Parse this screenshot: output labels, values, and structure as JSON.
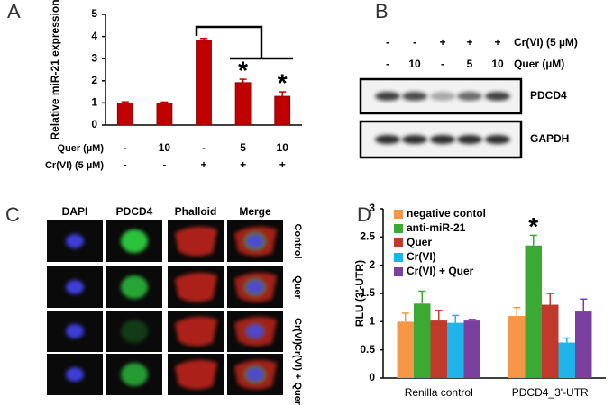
{
  "chart_data": [
    {
      "type": "bar",
      "panel": "A",
      "y_label": "Relative miR-21 expression",
      "categories": [
        null,
        null,
        null,
        null,
        null
      ],
      "values": [
        1.0,
        1.0,
        3.83,
        1.92,
        1.3
      ],
      "errors": [
        0.05,
        0.04,
        0.08,
        0.15,
        0.2
      ],
      "significance": [
        null,
        null,
        null,
        "*",
        "*"
      ],
      "color": "#c00000",
      "ylim": [
        0,
        5
      ],
      "yticks": [
        0,
        1,
        2,
        3,
        4,
        5
      ],
      "condition_rows": [
        {
          "label": "Quer (µM)",
          "values": [
            "-",
            "10",
            "-",
            "5",
            "10"
          ]
        },
        {
          "label": "Cr(VI) (5 µM)",
          "values": [
            "-",
            "-",
            "+",
            "+",
            "+"
          ]
        }
      ]
    },
    {
      "type": "bar",
      "panel": "D",
      "y_label": "RLU (3'-UTR)",
      "categories": [
        "Renilla control",
        "PDCD4_3'-UTR"
      ],
      "series": [
        {
          "name": "negative contol",
          "color": "#f79646",
          "values": [
            1.0,
            1.1
          ],
          "errors": [
            0.15,
            0.15
          ]
        },
        {
          "name": "anti-miR-21",
          "color": "#3aaa35",
          "values": [
            1.32,
            2.35
          ],
          "errors": [
            0.22,
            0.18
          ],
          "significance": [
            null,
            "*"
          ]
        },
        {
          "name": "Quer",
          "color": "#c0392b",
          "values": [
            1.02,
            1.3
          ],
          "errors": [
            0.18,
            0.2
          ]
        },
        {
          "name": "Cr(VI)",
          "color": "#1eb4ea",
          "values": [
            0.98,
            0.63
          ],
          "errors": [
            0.13,
            0.08
          ]
        },
        {
          "name": "Cr(VI) + Quer",
          "color": "#7b3fa0",
          "values": [
            1.02,
            1.18
          ],
          "errors": [
            0.02,
            0.22
          ]
        }
      ],
      "ylim": [
        0,
        3
      ],
      "yticks": [
        0,
        0.5,
        1,
        1.5,
        2,
        2.5,
        3
      ],
      "legend": "upper left"
    }
  ],
  "western_blot": {
    "panel": "B",
    "conditions": [
      {
        "label": "Cr(VI) (5 µM)",
        "values": [
          "-",
          "-",
          "+",
          "+",
          "+"
        ]
      },
      {
        "label": "Quer (µM)",
        "values": [
          "-",
          "10",
          "-",
          "5",
          "10"
        ]
      }
    ],
    "bands": [
      "PDCD4",
      "GAPDH"
    ]
  },
  "microscopy": {
    "panel": "C",
    "columns": [
      "DAPI",
      "PDCD4",
      "Phalloid",
      "Merge"
    ],
    "rows": [
      "Control",
      "Quer",
      "Cr(VI)",
      "Cr(VI) + Quer"
    ]
  }
}
